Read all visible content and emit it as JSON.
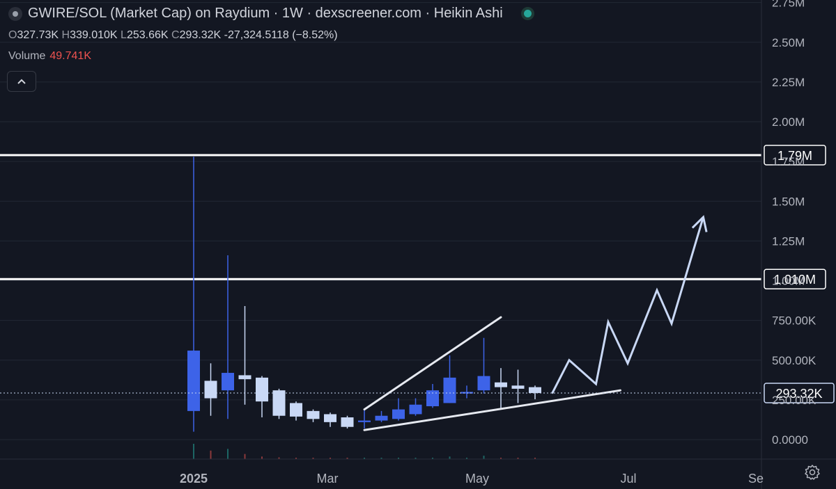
{
  "header": {
    "title": "GWIRE/SOL (Market Cap) on Raydium · 1W · dexscreener.com · Heikin Ashi",
    "ohlc": {
      "o_label": "O",
      "o": "327.73K",
      "h_label": "H",
      "h": "339.010K",
      "l_label": "L",
      "l": "253.66K",
      "c_label": "C",
      "c": "293.32K",
      "change": "-27,324.5118 (−8.52%)"
    },
    "volume_label": "Volume",
    "volume_value": "49.741K",
    "collapse_icon": "chevron-up-icon",
    "status_icon": "live-status-dot"
  },
  "colors": {
    "background": "#131722",
    "bull": "#3d63e8",
    "bear": "#c9d8f5",
    "grid": "#232834",
    "level_line": "#ffffff",
    "projection": "#c9d8f5"
  },
  "chart_data": {
    "type": "candlestick",
    "ylim": [
      -50000,
      2800000
    ],
    "y_ticks": [
      "0.0000",
      "250.00K",
      "500.00K",
      "750.00K",
      "1.00M",
      "1.25M",
      "1.50M",
      "1.75M",
      "2.00M",
      "2.25M",
      "2.50M",
      "2.75M"
    ],
    "x_ticks": [
      "2025",
      "Mar",
      "May",
      "Jul",
      "Se"
    ],
    "candles": [
      {
        "date": "2025-01-01",
        "o": 180000,
        "h": 1780000,
        "l": 50000,
        "c": 560000
      },
      {
        "date": "2025-01-08",
        "o": 370000,
        "h": 480000,
        "l": 150000,
        "c": 260000
      },
      {
        "date": "2025-01-15",
        "o": 310000,
        "h": 1160000,
        "l": 130000,
        "c": 420000
      },
      {
        "date": "2025-01-22",
        "o": 405000,
        "h": 840000,
        "l": 220000,
        "c": 380000
      },
      {
        "date": "2025-01-29",
        "o": 390000,
        "h": 400000,
        "l": 140000,
        "c": 240000
      },
      {
        "date": "2025-02-05",
        "o": 310000,
        "h": 320000,
        "l": 130000,
        "c": 150000
      },
      {
        "date": "2025-02-12",
        "o": 230000,
        "h": 240000,
        "l": 120000,
        "c": 145000
      },
      {
        "date": "2025-02-19",
        "o": 180000,
        "h": 190000,
        "l": 110000,
        "c": 130000
      },
      {
        "date": "2025-02-26",
        "o": 160000,
        "h": 170000,
        "l": 80000,
        "c": 110000
      },
      {
        "date": "2025-03-05",
        "o": 140000,
        "h": 150000,
        "l": 70000,
        "c": 80000
      },
      {
        "date": "2025-03-12",
        "o": 110000,
        "h": 190000,
        "l": 70000,
        "c": 120000
      },
      {
        "date": "2025-03-19",
        "o": 120000,
        "h": 180000,
        "l": 110000,
        "c": 150000
      },
      {
        "date": "2025-03-26",
        "o": 130000,
        "h": 260000,
        "l": 120000,
        "c": 190000
      },
      {
        "date": "2025-04-02",
        "o": 160000,
        "h": 260000,
        "l": 150000,
        "c": 220000
      },
      {
        "date": "2025-04-09",
        "o": 210000,
        "h": 350000,
        "l": 200000,
        "c": 310000
      },
      {
        "date": "2025-04-16",
        "o": 230000,
        "h": 530000,
        "l": 230000,
        "c": 390000
      },
      {
        "date": "2025-04-23",
        "o": 290000,
        "h": 340000,
        "l": 260000,
        "c": 300000
      },
      {
        "date": "2025-04-30",
        "o": 310000,
        "h": 640000,
        "l": 290000,
        "c": 400000
      },
      {
        "date": "2025-05-07",
        "o": 360000,
        "h": 450000,
        "l": 190000,
        "c": 330000
      },
      {
        "date": "2025-05-14",
        "o": 340000,
        "h": 440000,
        "l": 230000,
        "c": 320000
      },
      {
        "date": "2025-05-21",
        "o": 330000,
        "h": 340000,
        "l": 254000,
        "c": 293000
      }
    ],
    "volume": [
      9000,
      5000,
      6000,
      3000,
      1500,
      1000,
      800,
      800,
      700,
      700,
      800,
      700,
      700,
      700,
      800,
      1500,
      800,
      2000,
      800,
      800,
      800
    ],
    "horizontal_levels": [
      {
        "label": "1.79M",
        "value": 1790000
      },
      {
        "label": "1.010M",
        "value": 1010000
      }
    ],
    "last_price": {
      "label": "293.32K",
      "value": 293320
    },
    "trendlines": [
      {
        "from": [
          "2025-03-12",
          190000
        ],
        "to": [
          "2025-05-07",
          770000
        ]
      },
      {
        "from": [
          "2025-03-12",
          60000
        ],
        "to": [
          "2025-06-25",
          310000
        ]
      }
    ],
    "projection_path": [
      [
        "2025-05-28",
        290000
      ],
      [
        "2025-06-04",
        500000
      ],
      [
        "2025-06-15",
        350000
      ],
      [
        "2025-06-20",
        740000
      ],
      [
        "2025-06-28",
        480000
      ],
      [
        "2025-07-10",
        940000
      ],
      [
        "2025-07-16",
        730000
      ],
      [
        "2025-07-29",
        1400000
      ]
    ]
  }
}
